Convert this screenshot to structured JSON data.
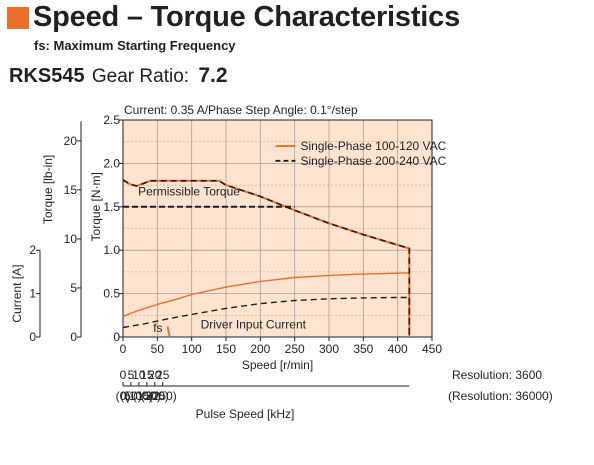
{
  "header": {
    "title": "Speed – Torque Characteristics",
    "subtitle": "fs: Maximum Starting Frequency",
    "accent_color": "#ec6e2d"
  },
  "model": {
    "name": "RKS545",
    "ratio_label": "Gear Ratio:",
    "ratio_value": "7.2"
  },
  "chart_data": {
    "type": "line",
    "condition_note": "Current: 0.35 A/Phase  Step Angle: 0.1°/step",
    "background_color": "#fde4d0",
    "grid": true,
    "legend_position": "top-right",
    "x_axis": {
      "label": "Speed [r/min]",
      "range": [
        0,
        450
      ],
      "ticks": [
        "0",
        "50",
        "100",
        "150",
        "200",
        "250",
        "300",
        "350",
        "400",
        "450"
      ]
    },
    "y_axis_torque_nm": {
      "label": "Torque [N·m]",
      "range": [
        0,
        2.5
      ],
      "ticks": [
        "0",
        "0.5",
        "1.0",
        "1.5",
        "2.0",
        "2.5"
      ]
    },
    "y_axis_torque_lbin": {
      "label": "Torque [lb-in]",
      "ticks": [
        "0",
        "5",
        "10",
        "15",
        "20"
      ]
    },
    "y_axis_current": {
      "label": "Current [A]",
      "ticks": [
        "0",
        "1",
        "2"
      ]
    },
    "pulse_axis": {
      "label": "Pulse Speed [kHz]",
      "ticks": [
        "0",
        "5",
        "10",
        "15",
        "20",
        "25"
      ],
      "ticks_alt": [
        "(0)",
        "(50)",
        "(100)",
        "(150)",
        "(200)",
        "(250)"
      ],
      "resolution": "Resolution: 3600",
      "resolution_alt": "(Resolution: 36000)"
    },
    "annotations": {
      "permissible_torque": "Permissible Torque",
      "driver_current": "Driver Input Current",
      "fs": "fs"
    },
    "series": [
      {
        "name": "Single-Phase 100-120 VAC",
        "color": "#ec6e2d",
        "dash": false,
        "torque": [
          [
            0,
            1.81
          ],
          [
            10,
            1.76
          ],
          [
            20,
            1.74
          ],
          [
            30,
            1.77
          ],
          [
            40,
            1.8
          ],
          [
            100,
            1.8
          ],
          [
            140,
            1.8
          ],
          [
            150,
            1.75
          ],
          [
            200,
            1.62
          ],
          [
            250,
            1.46
          ],
          [
            300,
            1.31
          ],
          [
            350,
            1.18
          ],
          [
            400,
            1.06
          ],
          [
            417,
            1.02
          ],
          [
            417,
            0
          ]
        ],
        "current": [
          [
            0,
            0.47
          ],
          [
            20,
            0.6
          ],
          [
            50,
            0.75
          ],
          [
            80,
            0.88
          ],
          [
            100,
            0.98
          ],
          [
            150,
            1.15
          ],
          [
            200,
            1.28
          ],
          [
            250,
            1.37
          ],
          [
            300,
            1.42
          ],
          [
            350,
            1.45
          ],
          [
            400,
            1.47
          ],
          [
            417,
            1.48
          ],
          [
            417,
            0
          ]
        ]
      },
      {
        "name": "Single-Phase 200-240 VAC",
        "color": "#231f20",
        "dash": true,
        "torque": [
          [
            0,
            1.81
          ],
          [
            10,
            1.76
          ],
          [
            20,
            1.74
          ],
          [
            30,
            1.77
          ],
          [
            40,
            1.8
          ],
          [
            100,
            1.8
          ],
          [
            140,
            1.8
          ],
          [
            150,
            1.75
          ],
          [
            200,
            1.62
          ],
          [
            250,
            1.46
          ],
          [
            300,
            1.31
          ],
          [
            350,
            1.18
          ],
          [
            400,
            1.06
          ],
          [
            417,
            1.02
          ],
          [
            417,
            0
          ]
        ],
        "current": [
          [
            0,
            0.22
          ],
          [
            30,
            0.3
          ],
          [
            60,
            0.4
          ],
          [
            100,
            0.52
          ],
          [
            150,
            0.66
          ],
          [
            200,
            0.77
          ],
          [
            250,
            0.84
          ],
          [
            300,
            0.88
          ],
          [
            350,
            0.9
          ],
          [
            400,
            0.91
          ],
          [
            417,
            0.91
          ],
          [
            417,
            0
          ]
        ]
      }
    ],
    "permissible_torque": [
      [
        0,
        1.5
      ],
      [
        250,
        1.5
      ]
    ],
    "fs_marker": [
      [
        65,
        0.12
      ],
      [
        68,
        0
      ]
    ]
  }
}
